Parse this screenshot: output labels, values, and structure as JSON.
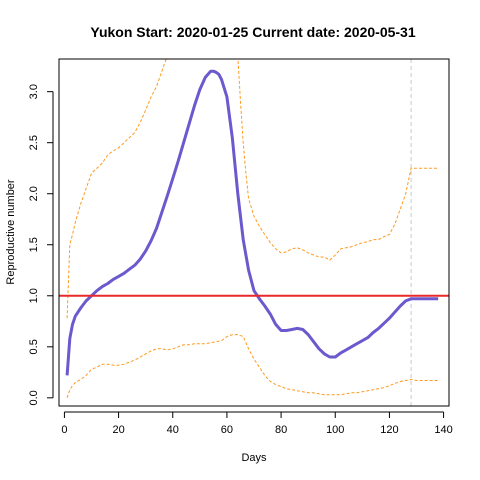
{
  "chart_data": {
    "type": "line",
    "title": "Yukon Start:  2020-01-25   Current date:  2020-05-31",
    "xlabel": "Days",
    "ylabel": "Reproductive number",
    "xlim": [
      -2,
      142
    ],
    "ylim": [
      -0.08,
      3.32
    ],
    "x_ticks": [
      0,
      20,
      40,
      60,
      80,
      100,
      120,
      140
    ],
    "y_ticks": [
      0.0,
      0.5,
      1.0,
      1.5,
      2.0,
      2.5,
      3.0
    ],
    "x_tick_labels": [
      "0",
      "20",
      "40",
      "60",
      "80",
      "100",
      "120",
      "140"
    ],
    "y_tick_labels": [
      "0.0",
      "0.5",
      "1.0",
      "1.5",
      "2.0",
      "2.5",
      "3.0"
    ],
    "reference_line": {
      "y": 1.0,
      "color": "#e8292b"
    },
    "current_day_marker": {
      "x": 128,
      "color": "#c8c8c8"
    },
    "colors": {
      "estimate": "#6a5acd",
      "bounds": "#ff9a1e"
    },
    "series": [
      {
        "role": "estimate",
        "x": [
          1,
          2,
          3,
          4,
          6,
          8,
          10,
          12,
          14,
          16,
          18,
          20,
          22,
          24,
          26,
          28,
          30,
          32,
          34,
          36,
          38,
          40,
          42,
          44,
          46,
          48,
          50,
          52,
          54,
          55,
          56,
          57,
          58,
          60,
          62,
          64,
          66,
          68,
          70,
          72,
          74,
          76,
          78,
          80,
          82,
          84,
          86,
          88,
          90,
          92,
          94,
          96,
          98,
          100,
          102,
          104,
          106,
          108,
          110,
          112,
          114,
          116,
          118,
          120,
          122,
          124,
          126,
          128,
          130,
          132,
          134,
          136,
          138
        ],
        "y": [
          0.22,
          0.58,
          0.72,
          0.8,
          0.88,
          0.95,
          1.0,
          1.05,
          1.09,
          1.12,
          1.16,
          1.19,
          1.22,
          1.26,
          1.3,
          1.36,
          1.44,
          1.54,
          1.66,
          1.82,
          1.98,
          2.15,
          2.32,
          2.5,
          2.68,
          2.86,
          3.02,
          3.14,
          3.2,
          3.2,
          3.19,
          3.17,
          3.12,
          2.95,
          2.55,
          2.0,
          1.55,
          1.25,
          1.05,
          0.97,
          0.9,
          0.82,
          0.72,
          0.66,
          0.66,
          0.67,
          0.68,
          0.67,
          0.62,
          0.55,
          0.48,
          0.43,
          0.4,
          0.4,
          0.44,
          0.47,
          0.5,
          0.53,
          0.56,
          0.59,
          0.64,
          0.68,
          0.73,
          0.78,
          0.84,
          0.9,
          0.95,
          0.97,
          0.97,
          0.97,
          0.97,
          0.97,
          0.97
        ]
      },
      {
        "role": "upper-bound",
        "x": [
          1,
          2,
          3,
          4,
          6,
          8,
          10,
          12,
          14,
          16,
          18,
          20,
          22,
          24,
          26,
          28,
          30,
          32,
          34,
          36,
          37,
          38
        ],
        "y": [
          0.78,
          1.5,
          1.6,
          1.72,
          1.9,
          2.05,
          2.2,
          2.25,
          2.3,
          2.38,
          2.42,
          2.45,
          2.5,
          2.55,
          2.6,
          2.7,
          2.82,
          2.95,
          3.05,
          3.2,
          3.28,
          3.35
        ]
      },
      {
        "role": "upper-bound",
        "x": [
          64,
          65,
          66,
          67,
          68,
          70,
          72,
          74,
          76,
          78,
          80,
          82,
          84,
          86,
          88,
          90,
          92,
          94,
          96,
          98,
          100,
          102,
          104,
          106,
          108,
          110,
          112,
          114,
          116,
          118,
          120,
          122,
          124,
          126,
          128,
          130,
          132,
          134,
          136,
          138
        ],
        "y": [
          3.35,
          2.9,
          2.5,
          2.2,
          1.95,
          1.78,
          1.68,
          1.6,
          1.52,
          1.46,
          1.42,
          1.43,
          1.46,
          1.47,
          1.45,
          1.42,
          1.4,
          1.38,
          1.38,
          1.35,
          1.4,
          1.46,
          1.47,
          1.48,
          1.5,
          1.52,
          1.53,
          1.55,
          1.55,
          1.58,
          1.6,
          1.7,
          1.85,
          2.0,
          2.25,
          2.25,
          2.25,
          2.25,
          2.25,
          2.25
        ]
      },
      {
        "role": "lower-bound",
        "x": [
          1,
          2,
          3,
          4,
          6,
          8,
          10,
          12,
          14,
          16,
          18,
          20,
          22,
          24,
          26,
          28,
          30,
          32,
          34,
          36,
          38,
          40,
          42,
          44,
          46,
          48,
          50,
          52,
          54,
          56,
          58,
          60,
          62,
          64,
          66,
          68,
          70,
          72,
          74,
          76,
          78,
          80,
          82,
          84,
          86,
          88,
          90,
          92,
          94,
          96,
          98,
          100,
          102,
          104,
          106,
          108,
          110,
          112,
          114,
          116,
          118,
          120,
          122,
          124,
          126,
          128,
          130,
          132,
          134,
          136,
          138
        ],
        "y": [
          0.0,
          0.08,
          0.12,
          0.15,
          0.18,
          0.22,
          0.28,
          0.3,
          0.33,
          0.33,
          0.32,
          0.32,
          0.33,
          0.35,
          0.37,
          0.4,
          0.43,
          0.46,
          0.48,
          0.48,
          0.47,
          0.48,
          0.5,
          0.52,
          0.52,
          0.53,
          0.53,
          0.53,
          0.54,
          0.55,
          0.56,
          0.6,
          0.62,
          0.62,
          0.6,
          0.48,
          0.38,
          0.3,
          0.22,
          0.16,
          0.13,
          0.11,
          0.09,
          0.08,
          0.07,
          0.06,
          0.05,
          0.05,
          0.04,
          0.03,
          0.03,
          0.03,
          0.03,
          0.04,
          0.05,
          0.05,
          0.06,
          0.07,
          0.08,
          0.09,
          0.1,
          0.12,
          0.14,
          0.16,
          0.17,
          0.18,
          0.17,
          0.17,
          0.17,
          0.17,
          0.17
        ]
      }
    ]
  }
}
